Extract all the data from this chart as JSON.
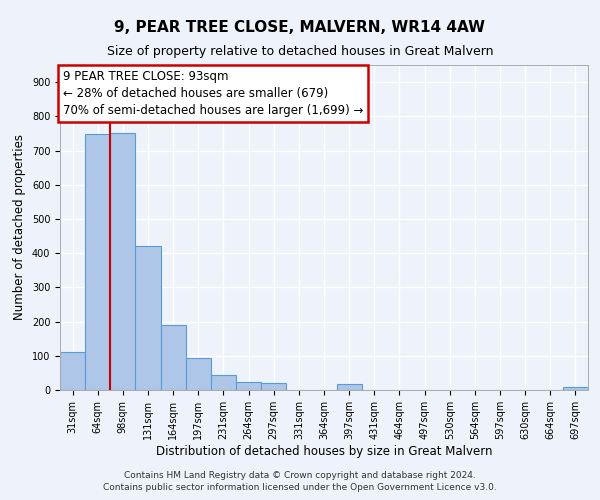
{
  "title": "9, PEAR TREE CLOSE, MALVERN, WR14 4AW",
  "subtitle": "Size of property relative to detached houses in Great Malvern",
  "xlabel": "Distribution of detached houses by size in Great Malvern",
  "ylabel": "Number of detached properties",
  "bin_labels": [
    "31sqm",
    "64sqm",
    "98sqm",
    "131sqm",
    "164sqm",
    "197sqm",
    "231sqm",
    "264sqm",
    "297sqm",
    "331sqm",
    "364sqm",
    "397sqm",
    "431sqm",
    "464sqm",
    "497sqm",
    "530sqm",
    "564sqm",
    "597sqm",
    "630sqm",
    "664sqm",
    "697sqm"
  ],
  "bar_values": [
    112,
    748,
    750,
    420,
    190,
    93,
    45,
    22,
    20,
    0,
    0,
    18,
    0,
    0,
    0,
    0,
    0,
    0,
    0,
    0,
    8
  ],
  "bar_color": "#aec6e8",
  "bar_edge_color": "#5b9bd5",
  "vline_x_index": 2,
  "vline_color": "#cc0000",
  "ylim": [
    0,
    950
  ],
  "yticks": [
    0,
    100,
    200,
    300,
    400,
    500,
    600,
    700,
    800,
    900
  ],
  "annotation_line1": "9 PEAR TREE CLOSE: 93sqm",
  "annotation_line2": "← 28% of detached houses are smaller (679)",
  "annotation_line3": "70% of semi-detached houses are larger (1,699) →",
  "annotation_box_edge": "#cc0000",
  "footer_line1": "Contains HM Land Registry data © Crown copyright and database right 2024.",
  "footer_line2": "Contains public sector information licensed under the Open Government Licence v3.0.",
  "background_color": "#eef2fa",
  "grid_color": "#ffffff",
  "title_fontsize": 11,
  "subtitle_fontsize": 9,
  "xlabel_fontsize": 8.5,
  "ylabel_fontsize": 8.5,
  "tick_fontsize": 7,
  "footer_fontsize": 6.5,
  "annotation_fontsize": 8.5
}
